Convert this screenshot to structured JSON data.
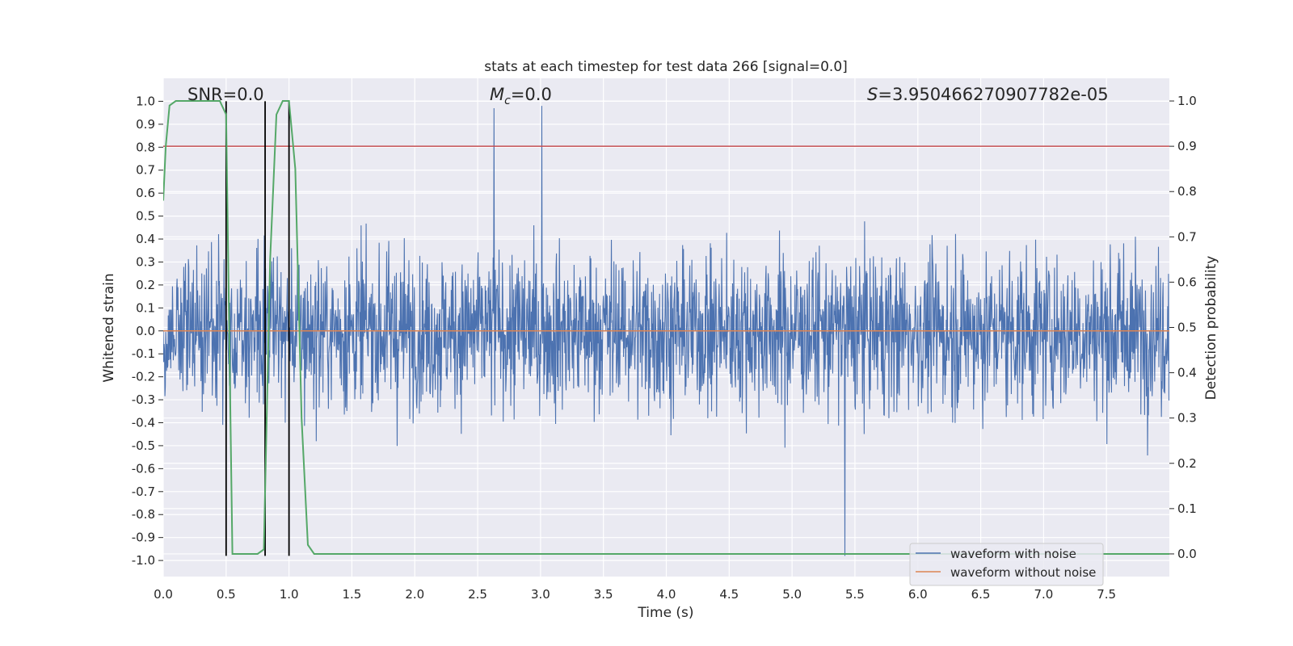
{
  "chart_data": {
    "type": "line",
    "title": "stats at each timestep for test data 266 [signal=0.0]",
    "xlabel": "Time (s)",
    "ylabel": "Whitened strain",
    "y2label": "Detection probability",
    "xlim": [
      0.0,
      8.0
    ],
    "ylim": [
      -1.07,
      1.1
    ],
    "y2lim": [
      -0.05,
      1.05
    ],
    "xticks": [
      "0.0",
      "0.5",
      "1.0",
      "1.5",
      "2.0",
      "2.5",
      "3.0",
      "3.5",
      "4.0",
      "4.5",
      "5.0",
      "5.5",
      "6.0",
      "6.5",
      "7.0",
      "7.5"
    ],
    "yticks": [
      "1.0",
      "0.9",
      "0.8",
      "0.7",
      "0.6",
      "0.5",
      "0.4",
      "0.3",
      "0.2",
      "0.1",
      "0.0",
      "-0.1",
      "-0.2",
      "-0.3",
      "-0.4",
      "-0.5",
      "-0.6",
      "-0.7",
      "-0.8",
      "-0.9",
      "-1.0"
    ],
    "y2ticks": [
      "1.0",
      "0.9",
      "0.8",
      "0.7",
      "0.6",
      "0.5",
      "0.4",
      "0.3",
      "0.2",
      "0.1",
      "0.0"
    ],
    "annotations": {
      "snr": "SNR=0.0",
      "mc_symbol": "M",
      "mc_sub": "c",
      "mc_value": "=0.0",
      "s_symbol": "S",
      "s_value": "=3.950466270907782e-05"
    },
    "series": [
      {
        "name": "waveform with noise",
        "color": "#4c72b0",
        "amplitude_envelope": [
          -0.98,
          0.98
        ],
        "peak_annotations": [
          {
            "x": 2.63,
            "y": 0.97
          },
          {
            "x": 3.01,
            "y": 0.99
          },
          {
            "x": 5.42,
            "y": -0.98
          }
        ]
      },
      {
        "name": "waveform without noise",
        "color": "#dd8452",
        "values": 0.0
      },
      {
        "name": "detection probability",
        "color": "#55a868",
        "axis": "right",
        "x": [
          0.0,
          0.02,
          0.05,
          0.1,
          0.2,
          0.3,
          0.4,
          0.45,
          0.5,
          0.55,
          0.6,
          0.7,
          0.75,
          0.8,
          0.85,
          0.9,
          0.95,
          1.0,
          1.05,
          1.1,
          1.15,
          1.2,
          8.0
        ],
        "y": [
          0.78,
          0.9,
          0.99,
          1.0,
          1.0,
          1.0,
          1.0,
          1.0,
          0.97,
          0.0,
          0.0,
          0.0,
          0.0,
          0.01,
          0.65,
          0.97,
          1.0,
          1.0,
          0.85,
          0.3,
          0.02,
          0.0,
          0.0
        ]
      }
    ],
    "threshold": {
      "value": 0.9,
      "axis": "right",
      "color": "#c44e52"
    },
    "vlines": {
      "x": [
        0.5,
        0.81,
        1.0
      ],
      "ymin": -0.98,
      "ymax": 1.0,
      "color": "#000000"
    },
    "legend": {
      "position": "lower-right",
      "entries": [
        "waveform with noise",
        "waveform without noise"
      ]
    }
  }
}
